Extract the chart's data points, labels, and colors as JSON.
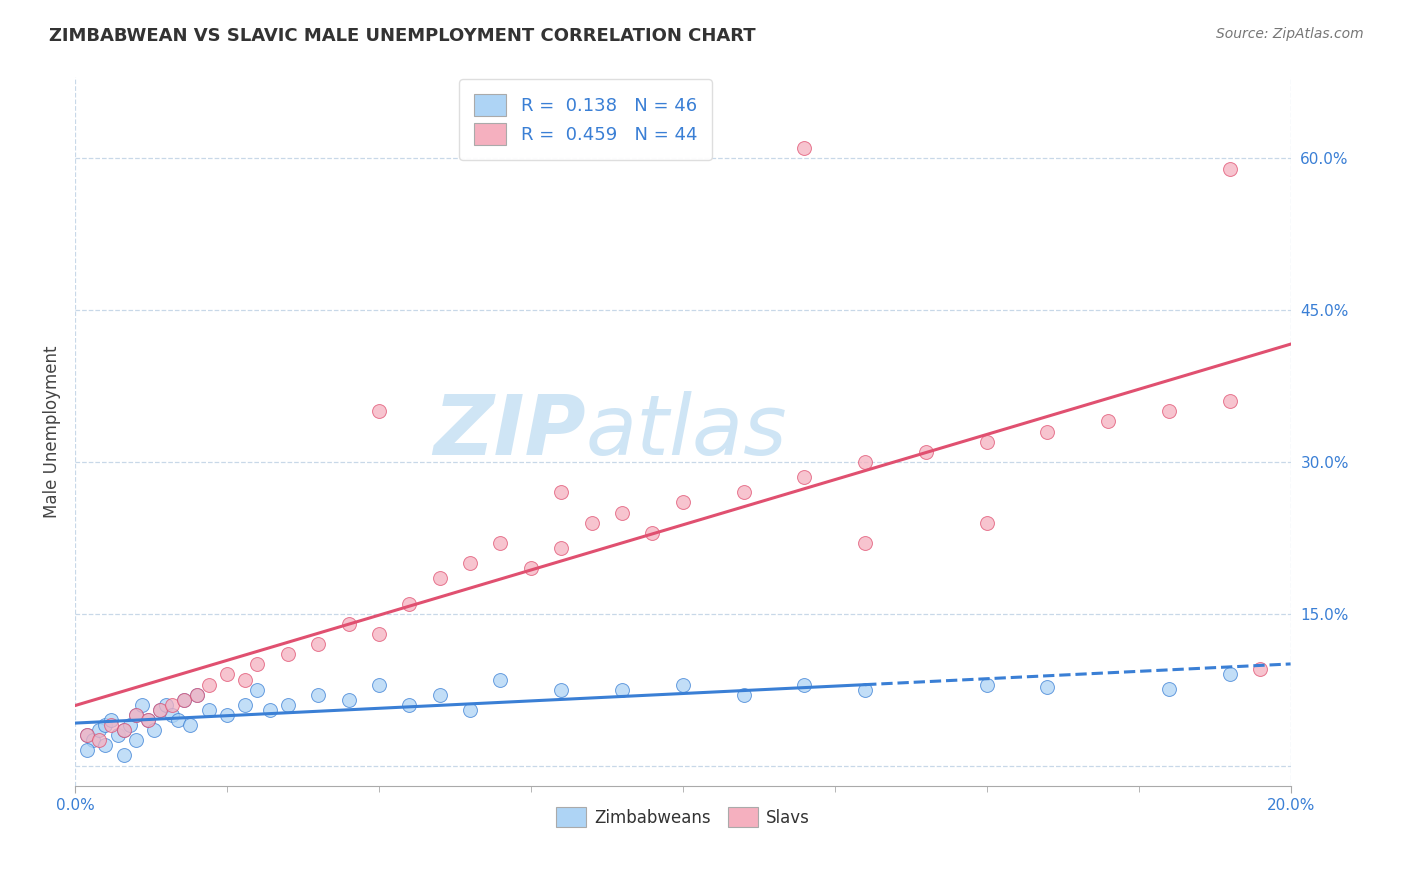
{
  "title": "ZIMBABWEAN VS SLAVIC MALE UNEMPLOYMENT CORRELATION CHART",
  "source": "Source: ZipAtlas.com",
  "ylabel": "Male Unemployment",
  "xlim": [
    0.0,
    0.2
  ],
  "ylim": [
    -0.02,
    0.68
  ],
  "x_ticks": [
    0.0,
    0.2
  ],
  "x_tick_labels": [
    "0.0%",
    "20.0%"
  ],
  "y_ticks": [
    0.0,
    0.15,
    0.3,
    0.45,
    0.6
  ],
  "y_tick_labels": [
    "",
    "15.0%",
    "30.0%",
    "45.0%",
    "60.0%"
  ],
  "blue_R": 0.138,
  "blue_N": 46,
  "pink_R": 0.459,
  "pink_N": 44,
  "blue_color": "#aed4f5",
  "pink_color": "#f5b0bf",
  "blue_line_color": "#3a7fd5",
  "pink_line_color": "#e05070",
  "watermark_top": "ZIP",
  "watermark_bot": "atlas",
  "watermark_color": "#cfe5f5",
  "grid_color": "#c8d8e8",
  "blue_scatter_x": [
    0.002,
    0.003,
    0.004,
    0.005,
    0.005,
    0.006,
    0.007,
    0.008,
    0.009,
    0.01,
    0.01,
    0.011,
    0.012,
    0.013,
    0.014,
    0.015,
    0.016,
    0.017,
    0.018,
    0.019,
    0.02,
    0.022,
    0.025,
    0.028,
    0.03,
    0.032,
    0.035,
    0.04,
    0.045,
    0.05,
    0.055,
    0.06,
    0.065,
    0.07,
    0.08,
    0.09,
    0.1,
    0.11,
    0.12,
    0.13,
    0.15,
    0.16,
    0.18,
    0.19,
    0.002,
    0.008
  ],
  "blue_scatter_y": [
    0.03,
    0.025,
    0.035,
    0.04,
    0.02,
    0.045,
    0.03,
    0.035,
    0.04,
    0.05,
    0.025,
    0.06,
    0.045,
    0.035,
    0.055,
    0.06,
    0.05,
    0.045,
    0.065,
    0.04,
    0.07,
    0.055,
    0.05,
    0.06,
    0.075,
    0.055,
    0.06,
    0.07,
    0.065,
    0.08,
    0.06,
    0.07,
    0.055,
    0.085,
    0.075,
    0.075,
    0.08,
    0.07,
    0.08,
    0.075,
    0.08,
    0.078,
    0.076,
    0.09,
    0.015,
    0.01
  ],
  "pink_scatter_x": [
    0.002,
    0.004,
    0.006,
    0.008,
    0.01,
    0.012,
    0.014,
    0.016,
    0.018,
    0.02,
    0.022,
    0.025,
    0.028,
    0.03,
    0.035,
    0.04,
    0.045,
    0.05,
    0.055,
    0.06,
    0.065,
    0.07,
    0.075,
    0.08,
    0.085,
    0.09,
    0.095,
    0.1,
    0.11,
    0.12,
    0.13,
    0.14,
    0.15,
    0.16,
    0.17,
    0.18,
    0.19,
    0.195,
    0.19,
    0.05,
    0.08,
    0.12,
    0.13,
    0.15
  ],
  "pink_scatter_y": [
    0.03,
    0.025,
    0.04,
    0.035,
    0.05,
    0.045,
    0.055,
    0.06,
    0.065,
    0.07,
    0.08,
    0.09,
    0.085,
    0.1,
    0.11,
    0.12,
    0.14,
    0.13,
    0.16,
    0.185,
    0.2,
    0.22,
    0.195,
    0.215,
    0.24,
    0.25,
    0.23,
    0.26,
    0.27,
    0.285,
    0.3,
    0.31,
    0.32,
    0.33,
    0.34,
    0.35,
    0.36,
    0.095,
    0.59,
    0.35,
    0.27,
    0.61,
    0.22,
    0.24
  ]
}
